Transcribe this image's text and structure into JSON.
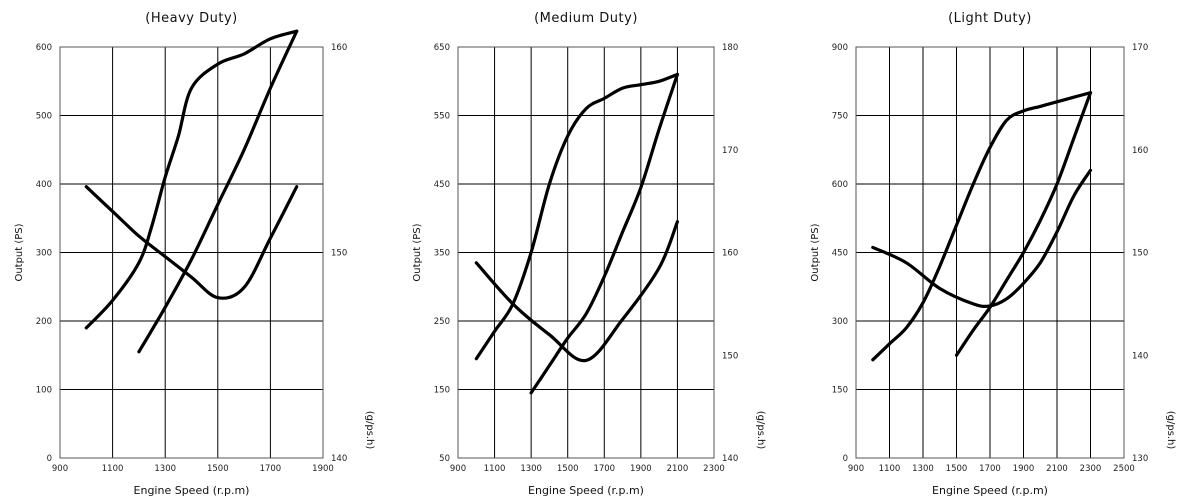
{
  "chart_data": [
    {
      "type": "line",
      "title": "(Heavy Duty)",
      "xlabel": "Engine Speed (r.p.m)",
      "ylabel": "Output (PS)",
      "y2label": "(g/ps.h)",
      "xlim": [
        900,
        1900
      ],
      "ylim": [
        0,
        600
      ],
      "y2lim": [
        140,
        160
      ],
      "x_ticks": [
        "900",
        "1100",
        "1300",
        "1500",
        "1700",
        "1900"
      ],
      "y_ticks": [
        "0",
        "100",
        "200",
        "300",
        "400",
        "500",
        "600"
      ],
      "y2_ticks": [
        "140",
        "150",
        "160"
      ],
      "grid": true,
      "series": [
        {
          "axis": "y",
          "x": [
            1000,
            1100,
            1200,
            1250,
            1300,
            1350,
            1400,
            1500,
            1600,
            1700,
            1800
          ],
          "y": [
            190,
            230,
            285,
            340,
            410,
            470,
            540,
            575,
            590,
            612,
            623
          ]
        },
        {
          "axis": "y",
          "x": [
            1200,
            1300,
            1400,
            1500,
            1600,
            1700,
            1800
          ],
          "y": [
            155,
            220,
            290,
            370,
            450,
            540,
            623
          ]
        },
        {
          "axis": "y2",
          "x": [
            1000,
            1100,
            1200,
            1300,
            1400,
            1500,
            1600,
            1700,
            1800
          ],
          "y": [
            153.2,
            152.0,
            150.8,
            149.8,
            148.8,
            147.8,
            148.3,
            150.7,
            153.2
          ]
        }
      ]
    },
    {
      "type": "line",
      "title": "(Medium Duty)",
      "xlabel": "Engine Speed (r.p.m)",
      "ylabel": "Output (PS)",
      "y2label": "(g/ps.h)",
      "xlim": [
        900,
        2300
      ],
      "ylim": [
        50,
        650
      ],
      "y2lim": [
        140,
        180
      ],
      "x_ticks": [
        "900",
        "1100",
        "1300",
        "1500",
        "1700",
        "1900",
        "2100",
        "2300"
      ],
      "y_ticks": [
        "50",
        "150",
        "250",
        "350",
        "450",
        "550",
        "650"
      ],
      "y2_ticks": [
        "140",
        "150",
        "160",
        "170",
        "180"
      ],
      "grid": true,
      "series": [
        {
          "axis": "y",
          "x": [
            1000,
            1100,
            1200,
            1300,
            1400,
            1500,
            1600,
            1700,
            1800,
            1900,
            2000,
            2100
          ],
          "y": [
            195,
            235,
            275,
            350,
            450,
            520,
            560,
            575,
            590,
            595,
            600,
            610
          ]
        },
        {
          "axis": "y",
          "x": [
            1300,
            1400,
            1500,
            1600,
            1700,
            1800,
            1900,
            2000,
            2100
          ],
          "y": [
            145,
            185,
            225,
            260,
            315,
            380,
            445,
            530,
            610
          ]
        },
        {
          "axis": "y2",
          "x": [
            1000,
            1200,
            1400,
            1600,
            1800,
            2000,
            2100
          ],
          "y": [
            159,
            155,
            152,
            149.5,
            153.5,
            158.5,
            163
          ]
        }
      ]
    },
    {
      "type": "line",
      "title": "(Light Duty)",
      "xlabel": "Engine Speed (r.p.m)",
      "ylabel": "Output (PS)",
      "y2label": "(g/ps.h)",
      "xlim": [
        900,
        2500
      ],
      "ylim": [
        0,
        900
      ],
      "y2lim": [
        130,
        170
      ],
      "x_ticks": [
        "900",
        "1100",
        "1300",
        "1500",
        "1700",
        "1900",
        "2100",
        "2300",
        "2500"
      ],
      "y_ticks": [
        "0",
        "150",
        "300",
        "450",
        "600",
        "750",
        "900"
      ],
      "y2_ticks": [
        "130",
        "140",
        "150",
        "160",
        "170"
      ],
      "grid": true,
      "series": [
        {
          "axis": "y",
          "x": [
            1000,
            1100,
            1200,
            1300,
            1400,
            1500,
            1600,
            1700,
            1800,
            1900,
            2000,
            2100,
            2200,
            2300
          ],
          "y": [
            215,
            250,
            285,
            340,
            420,
            510,
            600,
            680,
            740,
            760,
            770,
            780,
            790,
            800
          ]
        },
        {
          "axis": "y",
          "x": [
            1500,
            1600,
            1700,
            1800,
            1900,
            2000,
            2100,
            2200,
            2300
          ],
          "y": [
            225,
            280,
            330,
            390,
            450,
            520,
            600,
            700,
            800
          ]
        },
        {
          "axis": "y2",
          "x": [
            1000,
            1200,
            1400,
            1600,
            1700,
            1800,
            1900,
            2000,
            2100,
            2200,
            2300
          ],
          "y": [
            150.5,
            149,
            146.5,
            145,
            144.8,
            145.5,
            147,
            149,
            152,
            155.5,
            158
          ]
        }
      ]
    }
  ]
}
